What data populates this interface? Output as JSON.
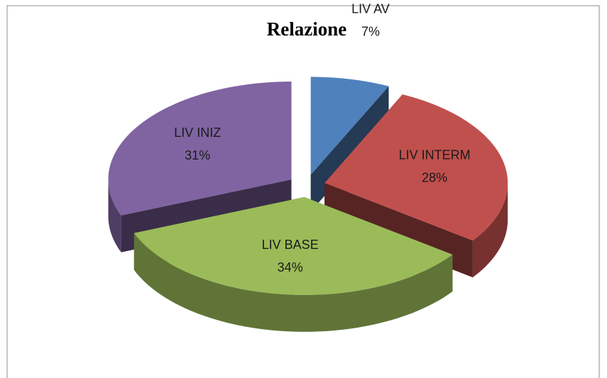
{
  "chart_data": {
    "type": "pie",
    "title": "Relazione",
    "categories": [
      "LIV AV",
      "LIV INTERM",
      "LIV BASE",
      "LIV INIZ"
    ],
    "values": [
      7,
      28,
      34,
      31
    ],
    "value_labels": [
      "7%",
      "28%",
      "34%",
      "31%"
    ],
    "colors": [
      "#4f81bd",
      "#c0504d",
      "#9bbb59",
      "#8064a2"
    ]
  }
}
